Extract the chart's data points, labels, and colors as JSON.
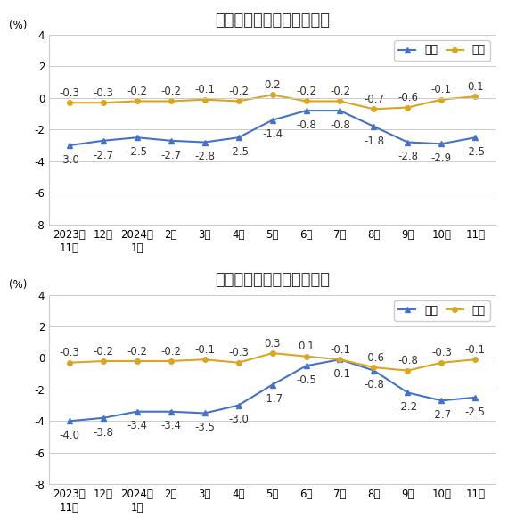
{
  "chart1": {
    "title": "工业生产者出厂价格涨跌幅",
    "yoy": [
      -3.0,
      -2.7,
      -2.5,
      -2.7,
      -2.8,
      -2.5,
      -1.4,
      -0.8,
      -0.8,
      -1.8,
      -2.8,
      -2.9,
      -2.5
    ],
    "mom": [
      -0.3,
      -0.3,
      -0.2,
      -0.2,
      -0.1,
      -0.2,
      0.2,
      -0.2,
      -0.2,
      -0.7,
      -0.6,
      -0.1,
      0.1
    ]
  },
  "chart2": {
    "title": "工业生产者购进价格涨跌幅",
    "yoy": [
      -4.0,
      -3.8,
      -3.4,
      -3.4,
      -3.5,
      -3.0,
      -1.7,
      -0.5,
      -0.1,
      -0.8,
      -2.2,
      -2.7,
      -2.5
    ],
    "mom": [
      -0.3,
      -0.2,
      -0.2,
      -0.2,
      -0.1,
      -0.3,
      0.3,
      0.1,
      -0.1,
      -0.6,
      -0.8,
      -0.3,
      -0.1
    ]
  },
  "x_labels": [
    "2023年\n11月",
    "12月",
    "2024年\n1月",
    "2月",
    "3月",
    "4月",
    "5月",
    "6月",
    "7月",
    "8月",
    "9月",
    "10月",
    "11月"
  ],
  "ylim": [
    -8.0,
    4.0
  ],
  "yticks": [
    -8.0,
    -6.0,
    -4.0,
    -2.0,
    0.0,
    2.0,
    4.0
  ],
  "ylabel": "(%)",
  "yoy_color": "#4472C4",
  "mom_color": "#DAA520",
  "legend_yoy": "同比",
  "legend_mom": "环比",
  "background_color": "#ffffff",
  "grid_color": "#cccccc",
  "font_color": "#333333",
  "title_fontsize": 13,
  "label_fontsize": 8.5,
  "tick_fontsize": 8.5,
  "legend_fontsize": 9
}
